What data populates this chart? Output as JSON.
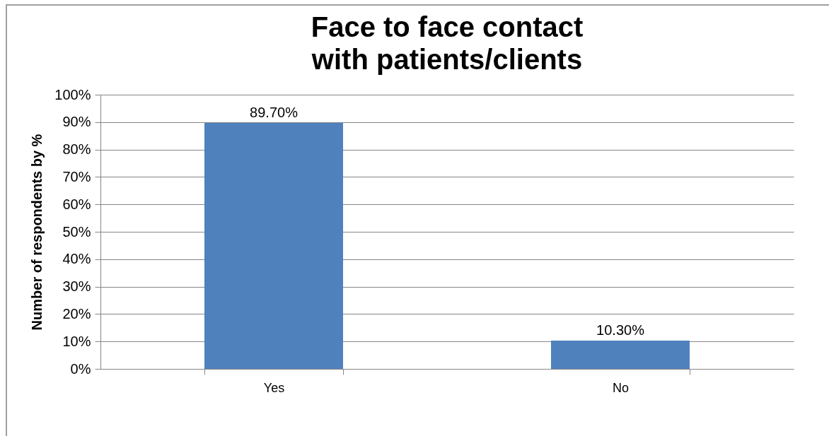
{
  "chart_data": {
    "type": "bar",
    "title": "Face to face contact with patients/clients",
    "ylabel": "Number of respondents by %",
    "categories": [
      "Yes",
      "No"
    ],
    "series": [
      {
        "color": "#4f81bd",
        "values": [
          89.7,
          10.3
        ],
        "value_labels": [
          "89.70%",
          "10.30%"
        ]
      }
    ],
    "ylim": [
      0,
      100
    ],
    "yticks": [
      {
        "value": 0,
        "label": "0%"
      },
      {
        "value": 10,
        "label": "10%"
      },
      {
        "value": 20,
        "label": "20%"
      },
      {
        "value": 30,
        "label": "30%"
      },
      {
        "value": 40,
        "label": "40%"
      },
      {
        "value": 50,
        "label": "50%"
      },
      {
        "value": 60,
        "label": "60%"
      },
      {
        "value": 70,
        "label": "70%"
      },
      {
        "value": 80,
        "label": "80%"
      },
      {
        "value": 90,
        "label": "90%"
      },
      {
        "value": 100,
        "label": "100%"
      }
    ],
    "grid": "y",
    "legend": false
  }
}
